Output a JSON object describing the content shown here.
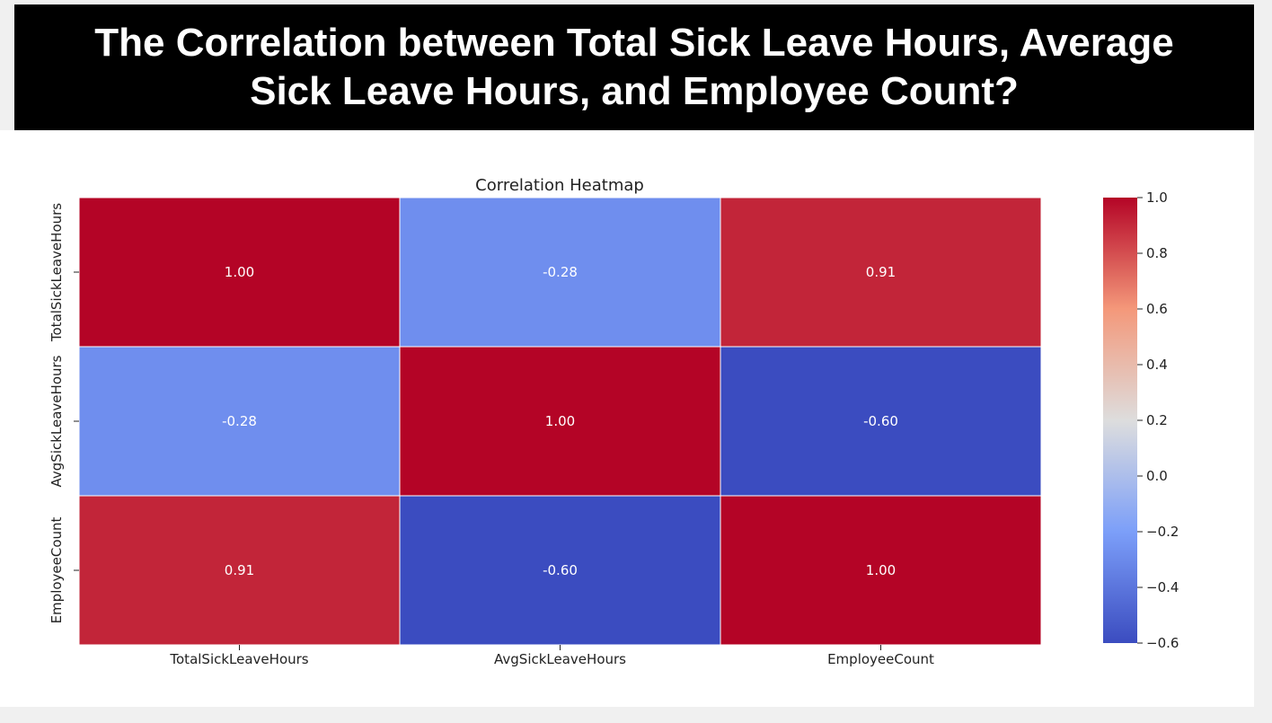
{
  "page_title": "The Correlation between Total Sick Leave Hours, Average Sick Leave Hours, and Employee Count?",
  "chart_data": {
    "type": "heatmap",
    "title": "Correlation Heatmap",
    "xlabel": "",
    "ylabel": "",
    "row_labels": [
      "TotalSickLeaveHours",
      "AvgSickLeaveHours",
      "EmployeeCount"
    ],
    "col_labels": [
      "TotalSickLeaveHours",
      "AvgSickLeaveHours",
      "EmployeeCount"
    ],
    "values": [
      [
        1.0,
        -0.28,
        0.91
      ],
      [
        -0.28,
        1.0,
        -0.6
      ],
      [
        0.91,
        -0.6,
        1.0
      ]
    ],
    "annotation_format": "2 decimals",
    "colormap": "coolwarm",
    "vmin": -0.6,
    "vmax": 1.0,
    "colorbar_ticks": [
      "1.0",
      "0.8",
      "0.6",
      "0.4",
      "0.2",
      "0.0",
      "−0.2",
      "−0.4",
      "−0.6"
    ],
    "colorbar_tick_values": [
      1.0,
      0.8,
      0.6,
      0.4,
      0.2,
      0.0,
      -0.2,
      -0.4,
      -0.6
    ],
    "colors": {
      "low": "#3b4cc0",
      "mid": "#dddddd",
      "high": "#b40426",
      "grid_lines": "#ffffff",
      "annotation_text": "#ffffff"
    }
  }
}
